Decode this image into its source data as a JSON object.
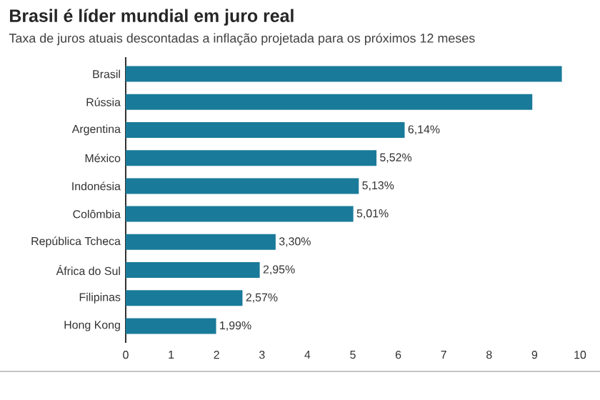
{
  "chart_data": {
    "type": "bar",
    "orientation": "horizontal",
    "title": "Brasil é líder mundial em juro real",
    "subtitle": "Taxa de juros atuais descontadas a inflação projetada para os próximos 12 meses",
    "categories": [
      "Brasil",
      "Rússia",
      "Argentina",
      "México",
      "Indonésia",
      "Colômbia",
      "República Tcheca",
      "África do Sul",
      "Filipinas",
      "Hong Kong"
    ],
    "values": [
      9.6,
      8.95,
      6.14,
      5.52,
      5.13,
      5.01,
      3.3,
      2.95,
      2.57,
      1.99
    ],
    "value_labels": [
      null,
      null,
      "6,14%",
      "5,52%",
      "5,13%",
      "5,01%",
      "3,30%",
      "2,95%",
      "2,57%",
      "1,99%"
    ],
    "color": "#1a7a9a",
    "xlim": [
      0,
      10
    ],
    "xticks": [
      0,
      1,
      2,
      3,
      4,
      5,
      6,
      7,
      8,
      9,
      10
    ],
    "grid": false
  }
}
